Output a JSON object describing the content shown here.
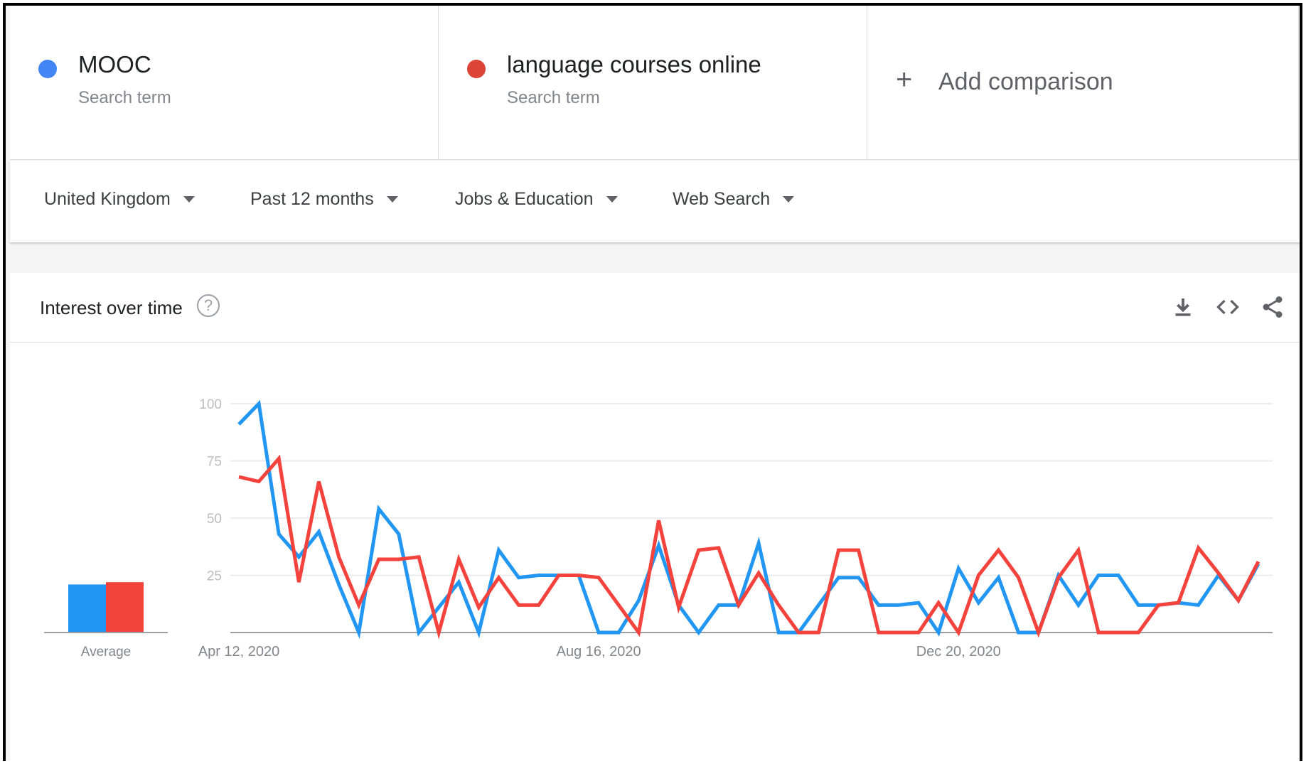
{
  "terms": [
    {
      "name": "MOOC",
      "subtitle": "Search term",
      "color": "#4285f4"
    },
    {
      "name": "language courses online",
      "subtitle": "Search term",
      "color": "#db4437"
    }
  ],
  "add_comparison": {
    "label": "Add comparison",
    "icon": "plus-icon"
  },
  "filters": {
    "region": "United Kingdom",
    "time": "Past 12 months",
    "category": "Jobs & Education",
    "search_type": "Web Search"
  },
  "card": {
    "title": "Interest over time",
    "help_icon": "?",
    "icons": [
      "download-icon",
      "embed-icon",
      "share-icon"
    ]
  },
  "chart_data": {
    "type": "line",
    "title": "",
    "xlabel": "",
    "ylabel": "",
    "ylim": [
      0,
      100
    ],
    "yticks": [
      25,
      50,
      75,
      100
    ],
    "grid": true,
    "x_tick_labels": [
      "Apr 12, 2020",
      "Aug 16, 2020",
      "Dec 20, 2020"
    ],
    "x_tick_index": [
      0,
      18,
      36
    ],
    "average_label": "Average",
    "averages": [
      21,
      22
    ],
    "series": [
      {
        "name": "MOOC",
        "color": "#2196f3",
        "values": [
          91,
          100,
          43,
          33,
          44,
          21,
          0,
          54,
          43,
          0,
          11,
          22,
          0,
          36,
          24,
          25,
          25,
          25,
          0,
          0,
          14,
          38,
          12,
          0,
          12,
          12,
          39,
          0,
          0,
          12,
          24,
          24,
          12,
          12,
          13,
          0,
          28,
          13,
          24,
          0,
          0,
          25,
          12,
          25,
          25,
          12,
          12,
          13,
          12,
          25,
          14,
          30
        ]
      },
      {
        "name": "language courses online",
        "color": "#f4433c",
        "values": [
          68,
          66,
          76,
          22,
          66,
          33,
          12,
          32,
          32,
          33,
          0,
          32,
          11,
          24,
          12,
          12,
          25,
          25,
          24,
          12,
          0,
          49,
          11,
          36,
          37,
          12,
          26,
          12,
          0,
          0,
          36,
          36,
          0,
          0,
          0,
          13,
          0,
          25,
          36,
          24,
          0,
          24,
          36,
          0,
          0,
          0,
          12,
          13,
          37,
          26,
          14,
          31
        ]
      }
    ]
  }
}
